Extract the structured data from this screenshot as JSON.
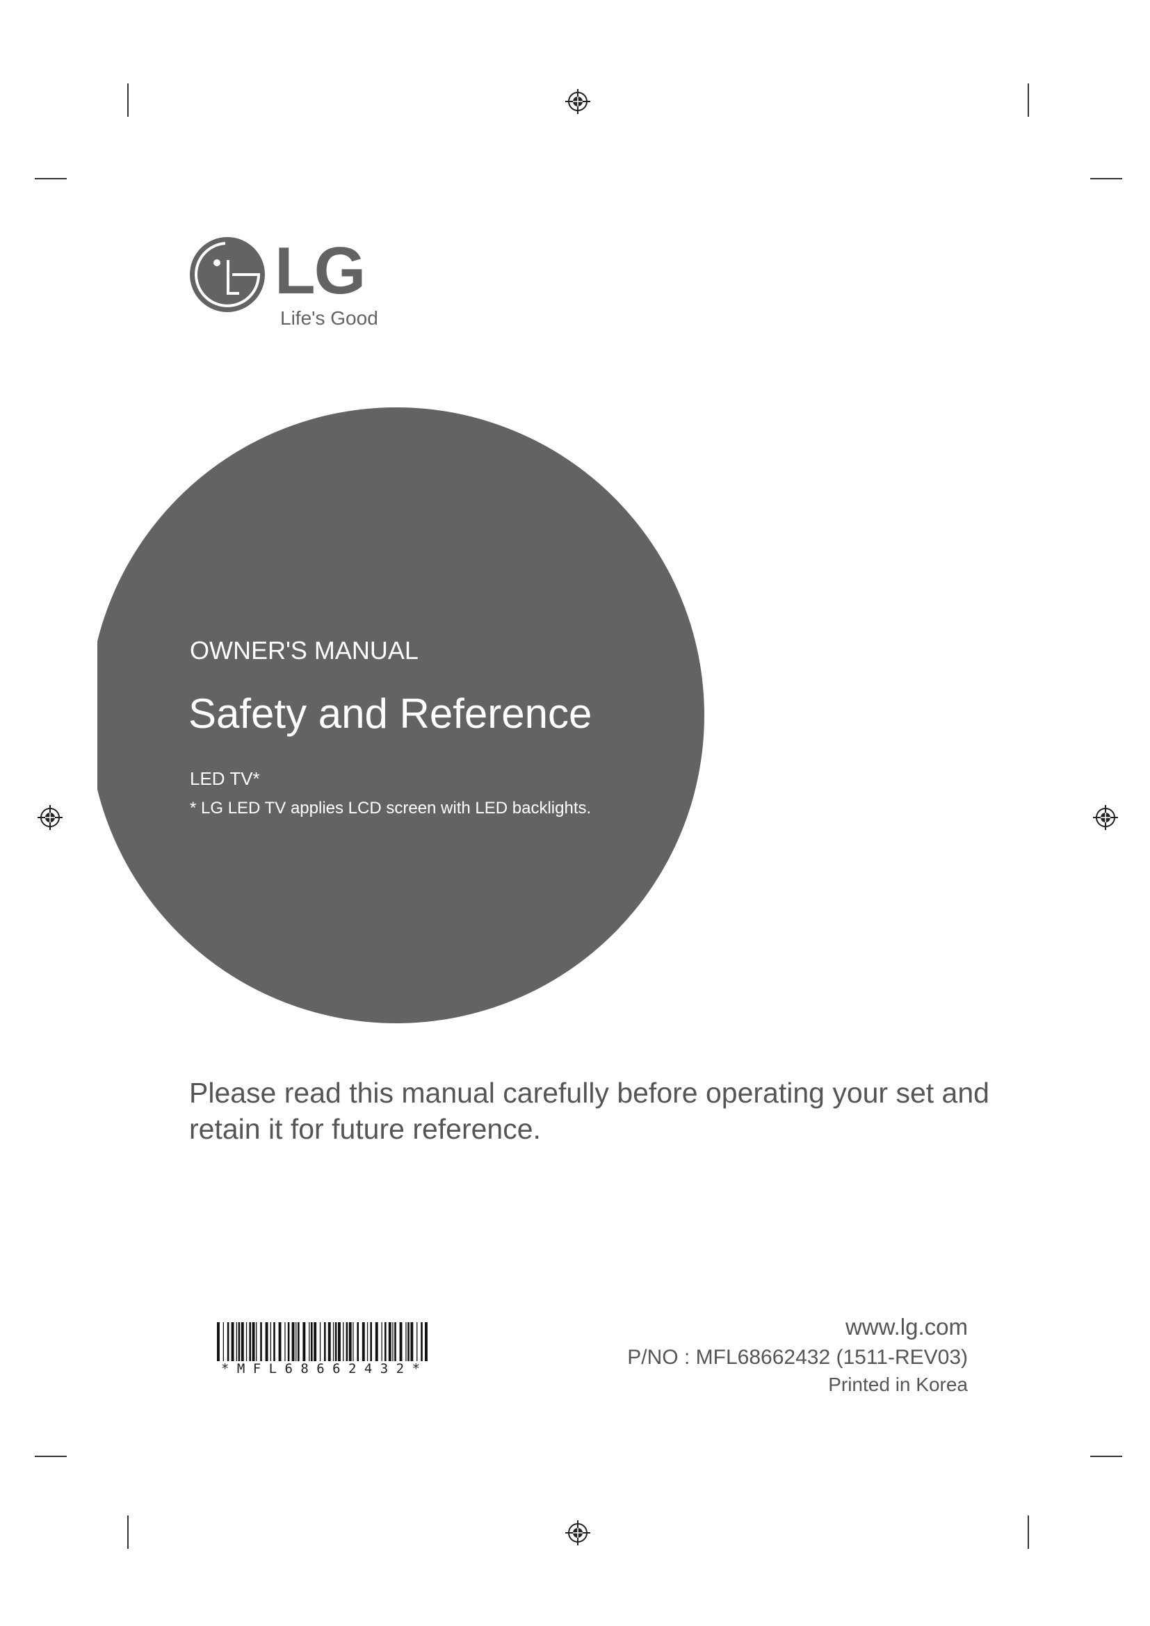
{
  "logo": {
    "brand": "LG",
    "tagline": "Life's Good",
    "color": "#646363"
  },
  "cover": {
    "subtitle": "OWNER'S MANUAL",
    "title": "Safety and Reference",
    "product": "LED TV*",
    "footnote": "* LG LED TV applies LCD screen with LED backlights.",
    "circle_color": "#646363"
  },
  "notice": {
    "line1": "Please read this manual carefully before operating your set and",
    "line2": "retain it for future reference."
  },
  "barcode": {
    "text": "* M F L 6 8 6 6 2 4 3 2 *"
  },
  "footer": {
    "website": "www.lg.com",
    "part_number": "P/NO : MFL68662432 (1511-REV03)",
    "printed": "Printed in Korea"
  }
}
